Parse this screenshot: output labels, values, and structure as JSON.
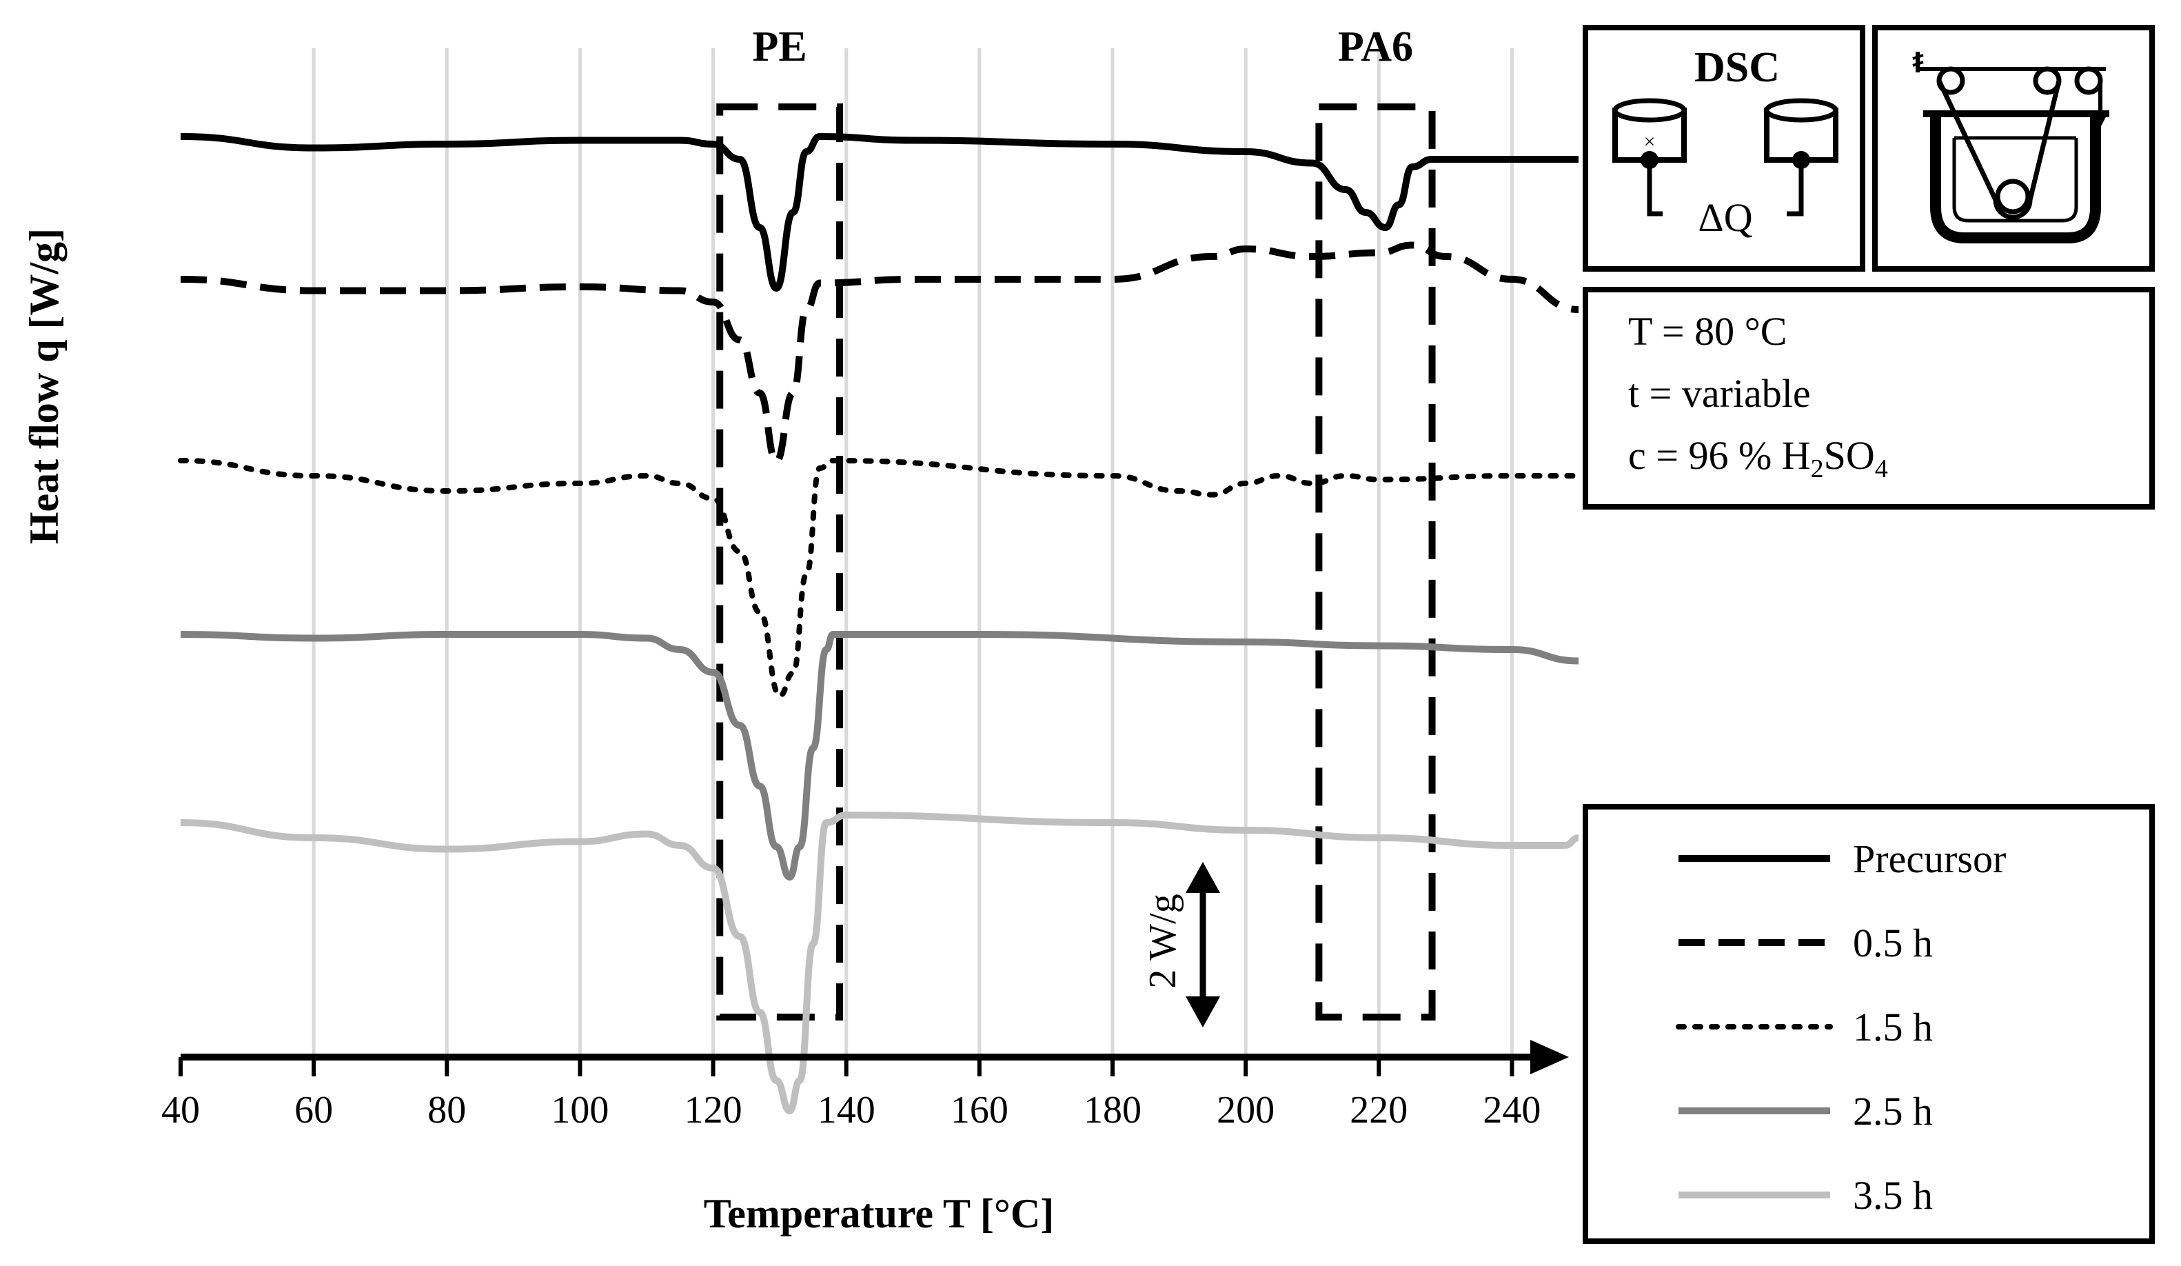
{
  "chart_data": {
    "type": "line",
    "xlabel": "Temperature T [°C]",
    "ylabel": "Heat flow q [W/g]",
    "xlim": [
      40,
      250
    ],
    "x_ticks": [
      "40",
      "60",
      "80",
      "100",
      "120",
      "140",
      "160",
      "180",
      "200",
      "220",
      "240"
    ],
    "grid": "vertical",
    "scale_bar_label": "2 W/g",
    "scale_bar_value": 2,
    "regions": [
      {
        "label": "PE",
        "x_range": [
          121,
          139
        ]
      },
      {
        "label": "PA6",
        "x_range": [
          211,
          228
        ]
      }
    ],
    "conditions": {
      "box_title": "DSC",
      "delta_label": "ΔQ",
      "line1": "T = 80 °C",
      "line2": "t = variable",
      "line3_prefix": "c = 96 % H",
      "line3_sub1": "2",
      "line3_mid": "SO",
      "line3_sub2": "4"
    },
    "legend_position": "right",
    "series": [
      {
        "name": "Precursor",
        "color": "#000000",
        "dash": "solid",
        "points": [
          [
            40,
            0
          ],
          [
            60,
            -0.15
          ],
          [
            80,
            -0.1
          ],
          [
            100,
            -0.05
          ],
          [
            115,
            -0.05
          ],
          [
            120,
            -0.1
          ],
          [
            124,
            -0.3
          ],
          [
            127,
            -1.2
          ],
          [
            129.5,
            -2.0
          ],
          [
            132,
            -1.0
          ],
          [
            134,
            -0.2
          ],
          [
            136,
            0
          ],
          [
            150,
            -0.05
          ],
          [
            180,
            -0.1
          ],
          [
            200,
            -0.2
          ],
          [
            210,
            -0.35
          ],
          [
            215,
            -0.7
          ],
          [
            218,
            -1.0
          ],
          [
            221,
            -1.2
          ],
          [
            223,
            -0.9
          ],
          [
            225,
            -0.4
          ],
          [
            228,
            -0.3
          ],
          [
            240,
            -0.3
          ],
          [
            250,
            -0.3
          ]
        ]
      },
      {
        "name": "0.5 h",
        "color": "#000000",
        "dash": "dash",
        "points": [
          [
            40,
            0
          ],
          [
            60,
            -0.15
          ],
          [
            80,
            -0.15
          ],
          [
            100,
            -0.1
          ],
          [
            115,
            -0.15
          ],
          [
            120,
            -0.3
          ],
          [
            124,
            -0.8
          ],
          [
            127,
            -1.5
          ],
          [
            129.5,
            -2.4
          ],
          [
            132,
            -1.5
          ],
          [
            134,
            -0.4
          ],
          [
            136,
            -0.05
          ],
          [
            150,
            0
          ],
          [
            180,
            0
          ],
          [
            195,
            0.3
          ],
          [
            200,
            0.4
          ],
          [
            210,
            0.3
          ],
          [
            220,
            0.35
          ],
          [
            225,
            0.45
          ],
          [
            230,
            0.3
          ],
          [
            240,
            0
          ],
          [
            250,
            -0.4
          ]
        ]
      },
      {
        "name": "1.5 h",
        "color": "#000000",
        "dash": "dot",
        "points": [
          [
            40,
            0
          ],
          [
            60,
            -0.2
          ],
          [
            80,
            -0.4
          ],
          [
            100,
            -0.3
          ],
          [
            110,
            -0.2
          ],
          [
            115,
            -0.3
          ],
          [
            120,
            -0.5
          ],
          [
            124,
            -1.2
          ],
          [
            127,
            -2.0
          ],
          [
            130,
            -3.1
          ],
          [
            132,
            -2.8
          ],
          [
            134,
            -1.5
          ],
          [
            136,
            -0.1
          ],
          [
            138,
            0
          ],
          [
            180,
            -0.2
          ],
          [
            190,
            -0.4
          ],
          [
            195,
            -0.45
          ],
          [
            200,
            -0.3
          ],
          [
            205,
            -0.2
          ],
          [
            210,
            -0.3
          ],
          [
            215,
            -0.2
          ],
          [
            220,
            -0.25
          ],
          [
            240,
            -0.2
          ],
          [
            250,
            -0.2
          ]
        ]
      },
      {
        "name": "2.5 h",
        "color": "#808080",
        "dash": "solid",
        "points": [
          [
            40,
            0
          ],
          [
            60,
            -0.05
          ],
          [
            80,
            0
          ],
          [
            100,
            0
          ],
          [
            110,
            -0.05
          ],
          [
            115,
            -0.2
          ],
          [
            120,
            -0.5
          ],
          [
            124,
            -1.2
          ],
          [
            127,
            -2.0
          ],
          [
            129.5,
            -2.8
          ],
          [
            131.5,
            -3.2
          ],
          [
            133,
            -2.8
          ],
          [
            135,
            -1.5
          ],
          [
            137,
            -0.2
          ],
          [
            138,
            0
          ],
          [
            160,
            0
          ],
          [
            200,
            -0.1
          ],
          [
            220,
            -0.15
          ],
          [
            240,
            -0.2
          ],
          [
            250,
            -0.35
          ]
        ]
      },
      {
        "name": "3.5 h",
        "color": "#bfbfbf",
        "dash": "solid",
        "points": [
          [
            40,
            0
          ],
          [
            60,
            -0.2
          ],
          [
            80,
            -0.35
          ],
          [
            100,
            -0.25
          ],
          [
            110,
            -0.15
          ],
          [
            115,
            -0.3
          ],
          [
            120,
            -0.6
          ],
          [
            124,
            -1.5
          ],
          [
            127,
            -2.5
          ],
          [
            129.5,
            -3.4
          ],
          [
            131.5,
            -3.8
          ],
          [
            133,
            -3.4
          ],
          [
            135,
            -1.6
          ],
          [
            137,
            0
          ],
          [
            140,
            0.1
          ],
          [
            180,
            0
          ],
          [
            200,
            -0.1
          ],
          [
            220,
            -0.2
          ],
          [
            240,
            -0.3
          ],
          [
            248,
            -0.3
          ],
          [
            250,
            -0.2
          ]
        ]
      }
    ]
  }
}
